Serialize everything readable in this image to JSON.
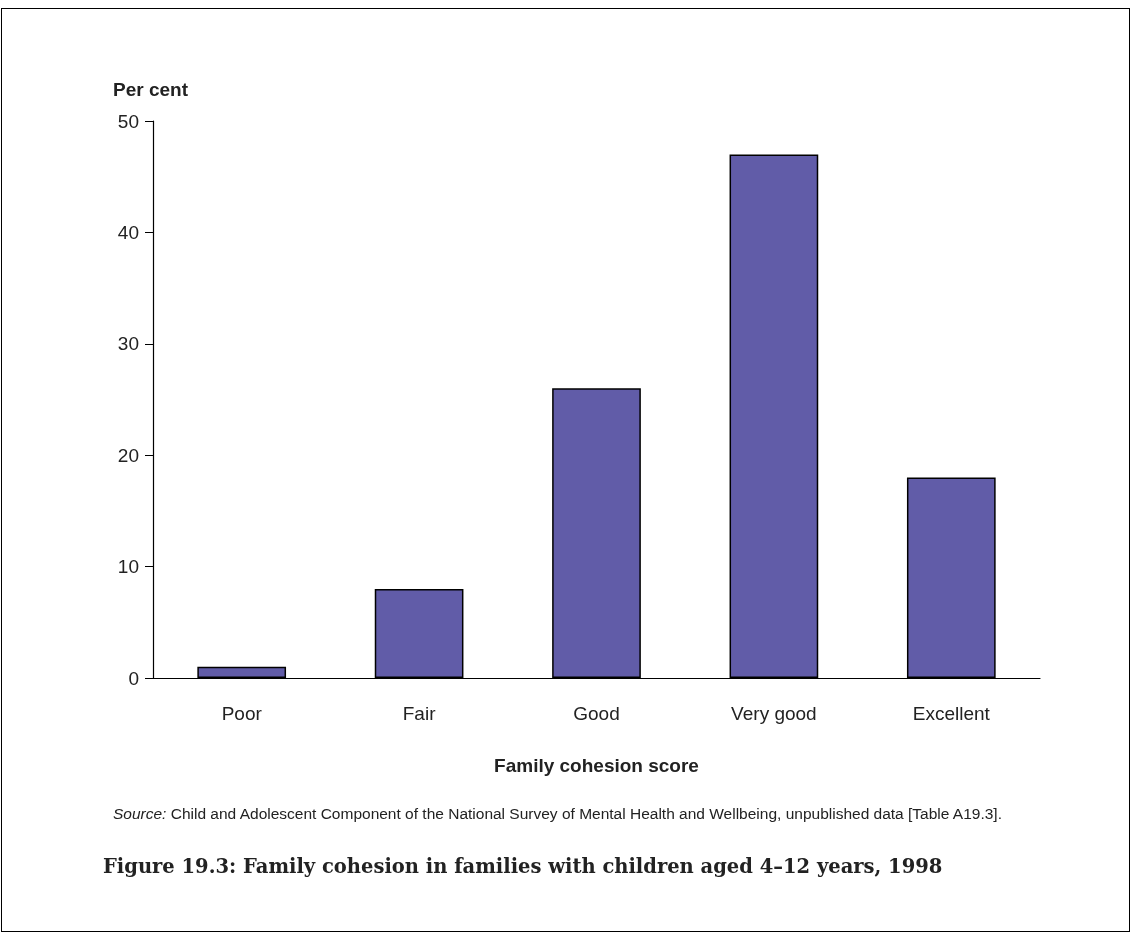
{
  "chart_data": {
    "type": "bar",
    "title": "Figure 19.3: Family cohesion in families with children aged 4–12 years, 1998",
    "xlabel": "Family cohesion score",
    "ylabel": "Per cent",
    "categories": [
      "Poor",
      "Fair",
      "Good",
      "Very good",
      "Excellent"
    ],
    "values": [
      1,
      8,
      26,
      47,
      18
    ],
    "color": "#615ca8",
    "ylim": [
      0,
      50
    ],
    "yticks": [
      0,
      10,
      20,
      30,
      40,
      50
    ],
    "grid": false,
    "annotations": [
      "Source: Child and Adolescent Component of the National Survey of Mental Health and Wellbeing, unpublished data [Table A19.3]."
    ]
  }
}
